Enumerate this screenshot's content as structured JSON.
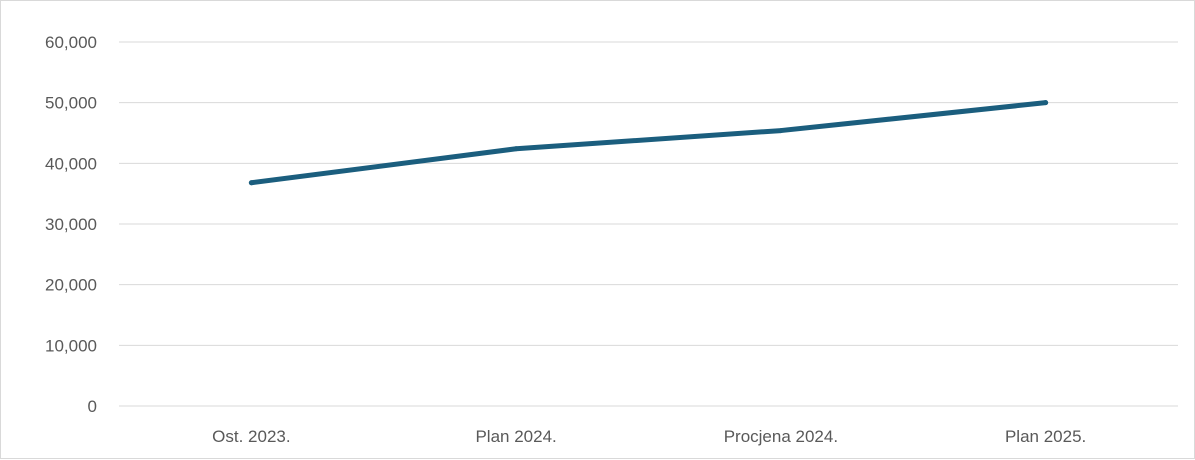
{
  "chart_data": {
    "type": "line",
    "title": "",
    "xlabel": "",
    "ylabel": "",
    "categories": [
      "Ost. 2023.",
      "Plan 2024.",
      "Procjena 2024.",
      "Plan 2025."
    ],
    "series": [
      {
        "values": [
          36800,
          42400,
          45400,
          50000
        ],
        "color": "#1b5e7e"
      }
    ],
    "ylim": [
      0,
      60000
    ],
    "yticks": [
      0,
      10000,
      20000,
      30000,
      40000,
      50000,
      60000
    ],
    "ytick_labels": [
      "0",
      "10,000",
      "20,000",
      "30,000",
      "40,000",
      "50,000",
      "60,000"
    ],
    "grid": true,
    "legend": "none"
  }
}
